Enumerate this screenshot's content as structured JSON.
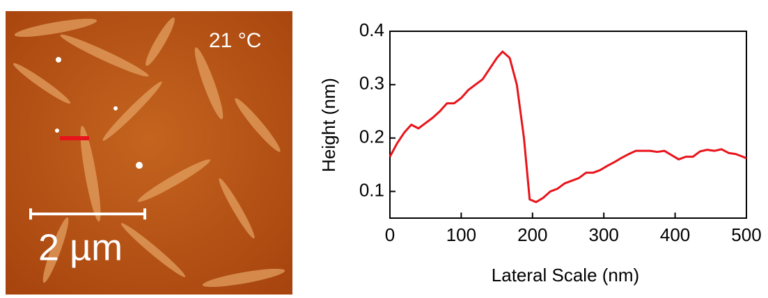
{
  "image": {
    "temperature_label": "21 °C",
    "scale_bar_label": "2 µm"
  },
  "chart_data": {
    "type": "line",
    "x_label": "Lateral Scale (nm)",
    "y_label": "Height (nm)",
    "x": [
      0,
      10,
      20,
      30,
      40,
      50,
      60,
      70,
      80,
      90,
      100,
      110,
      120,
      130,
      140,
      150,
      158,
      168,
      178,
      188,
      196,
      205,
      215,
      225,
      235,
      245,
      255,
      265,
      275,
      285,
      295,
      305,
      315,
      325,
      335,
      345,
      355,
      365,
      375,
      385,
      395,
      405,
      415,
      425,
      435,
      445,
      455,
      465,
      475,
      485,
      495,
      500
    ],
    "values": [
      0.165,
      0.19,
      0.21,
      0.225,
      0.218,
      0.228,
      0.238,
      0.25,
      0.265,
      0.265,
      0.275,
      0.29,
      0.3,
      0.31,
      0.33,
      0.35,
      0.362,
      0.35,
      0.3,
      0.2,
      0.085,
      0.08,
      0.088,
      0.1,
      0.105,
      0.115,
      0.12,
      0.125,
      0.135,
      0.135,
      0.14,
      0.148,
      0.155,
      0.163,
      0.17,
      0.176,
      0.176,
      0.176,
      0.174,
      0.176,
      0.168,
      0.16,
      0.165,
      0.165,
      0.175,
      0.178,
      0.176,
      0.179,
      0.172,
      0.17,
      0.165,
      0.162
    ],
    "color": "#e8141b",
    "xlim": [
      0,
      500
    ],
    "ylim": [
      0.05,
      0.4
    ],
    "xticks": [
      0,
      100,
      200,
      300,
      400,
      500
    ],
    "yticks": [
      0.1,
      0.2,
      0.3,
      0.4
    ]
  }
}
